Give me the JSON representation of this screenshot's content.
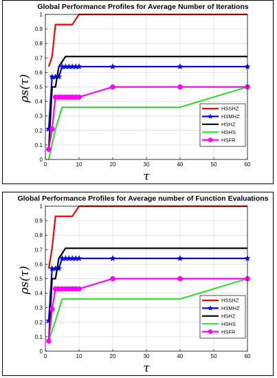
{
  "chart_data": [
    {
      "type": "line",
      "title": "Global Performance Profiles for Average Number of Iterations",
      "xlabel": "τ",
      "ylabel": "ρs(τ)",
      "xlim": [
        0,
        60
      ],
      "ylim": [
        0,
        1
      ],
      "xticks": [
        0,
        10,
        20,
        30,
        40,
        50,
        60
      ],
      "yticks": [
        0,
        0.1,
        0.2,
        0.3,
        0.4,
        0.5,
        0.6,
        0.7,
        0.8,
        0.9,
        1
      ],
      "grid": true,
      "legend_position": "center-right",
      "series": [
        {
          "name": "HSSHZ",
          "color": "#ff0000",
          "marker": "none",
          "x": [
            1,
            2,
            3,
            8,
            10,
            60
          ],
          "y": [
            0.64,
            0.71,
            0.93,
            0.93,
            1.0,
            1.0
          ]
        },
        {
          "name": "HSMHZ",
          "color": "#0000ff",
          "marker": "star",
          "x": [
            1,
            2,
            3,
            4,
            5,
            6,
            7,
            8,
            9,
            10,
            20,
            40,
            60
          ],
          "y": [
            0.21,
            0.57,
            0.57,
            0.57,
            0.64,
            0.64,
            0.64,
            0.64,
            0.64,
            0.64,
            0.64,
            0.64,
            0.64
          ]
        },
        {
          "name": "HSHZ",
          "color": "#000000",
          "marker": "none",
          "x": [
            1,
            2,
            3,
            4,
            6,
            60
          ],
          "y": [
            0.07,
            0.5,
            0.5,
            0.64,
            0.71,
            0.71
          ]
        },
        {
          "name": "HSHS",
          "color": "#33dd33",
          "marker": "none",
          "x": [
            1,
            3,
            5,
            40,
            60
          ],
          "y": [
            0.0,
            0.21,
            0.36,
            0.36,
            0.5
          ]
        },
        {
          "name": "HSFR",
          "color": "#ff00ff",
          "marker": "circle",
          "x": [
            1,
            2,
            3,
            4,
            5,
            6,
            7,
            8,
            9,
            10,
            20,
            40,
            60
          ],
          "y": [
            0.07,
            0.21,
            0.43,
            0.43,
            0.43,
            0.43,
            0.43,
            0.43,
            0.43,
            0.43,
            0.5,
            0.5,
            0.5
          ]
        }
      ]
    },
    {
      "type": "line",
      "title": "Global Performance Profiles for Average number of Function Evaluations",
      "xlabel": "τ",
      "ylabel": "ρs(τ)",
      "xlim": [
        0,
        60
      ],
      "ylim": [
        0,
        1
      ],
      "xticks": [
        0,
        10,
        20,
        30,
        40,
        50,
        60
      ],
      "yticks": [
        0,
        0.1,
        0.2,
        0.3,
        0.4,
        0.5,
        0.6,
        0.7,
        0.8,
        0.9,
        1
      ],
      "grid": true,
      "legend_position": "center-right",
      "series": [
        {
          "name": "HSSHZ",
          "color": "#ff0000",
          "marker": "none",
          "x": [
            1,
            2,
            3,
            8,
            10,
            60
          ],
          "y": [
            0.57,
            0.71,
            0.93,
            0.93,
            1.0,
            1.0
          ]
        },
        {
          "name": "HSMHZ",
          "color": "#0000ff",
          "marker": "star",
          "x": [
            1,
            2,
            3,
            4,
            5,
            6,
            7,
            8,
            9,
            10,
            20,
            40,
            60
          ],
          "y": [
            0.21,
            0.57,
            0.57,
            0.57,
            0.64,
            0.64,
            0.64,
            0.64,
            0.64,
            0.64,
            0.64,
            0.64,
            0.64
          ]
        },
        {
          "name": "HSHZ",
          "color": "#000000",
          "marker": "none",
          "x": [
            1,
            2,
            3,
            4,
            6,
            60
          ],
          "y": [
            0.07,
            0.5,
            0.5,
            0.64,
            0.71,
            0.71
          ]
        },
        {
          "name": "HSHS",
          "color": "#33dd33",
          "marker": "none",
          "x": [
            1,
            3,
            5,
            40,
            60
          ],
          "y": [
            0.07,
            0.21,
            0.36,
            0.36,
            0.5
          ]
        },
        {
          "name": "HSFR",
          "color": "#ff00ff",
          "marker": "circle",
          "x": [
            1,
            2,
            3,
            4,
            5,
            6,
            7,
            8,
            9,
            10,
            20,
            40,
            60
          ],
          "y": [
            0.07,
            0.29,
            0.43,
            0.43,
            0.43,
            0.43,
            0.43,
            0.43,
            0.43,
            0.43,
            0.5,
            0.5,
            0.5
          ]
        }
      ]
    }
  ]
}
